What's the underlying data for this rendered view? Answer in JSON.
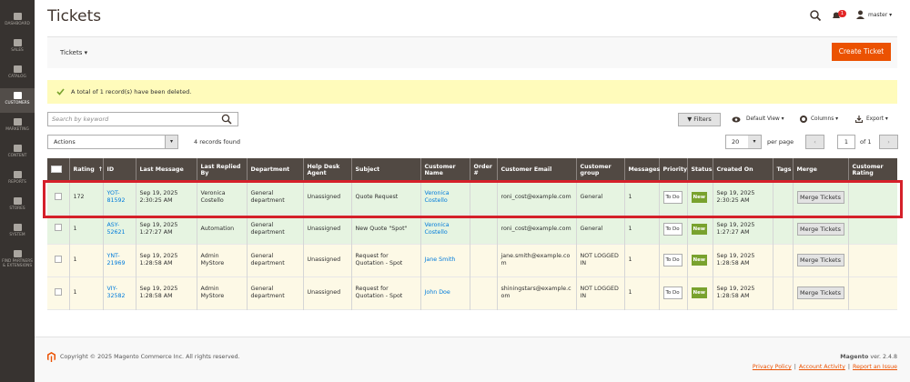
{
  "sidebar": {
    "items": [
      "DASHBOARD",
      "SALES",
      "CATALOG",
      "CUSTOMERS",
      "MARKETING",
      "CONTENT",
      "REPORTS",
      "STORES",
      "SYSTEM",
      "FIND PARTNERS & EXTENSIONS"
    ]
  },
  "header": {
    "title": "Tickets",
    "notifications": "1",
    "user": "master"
  },
  "toolbar": {
    "switcher": "Tickets",
    "button": "Create Ticket"
  },
  "message": "A total of 1 record(s) have been deleted.",
  "grid": {
    "search_placeholder": "Search by keyword",
    "filters": "Filters",
    "view": "Default View",
    "columns": "Columns",
    "export": "Export",
    "actions": "Actions",
    "records": "4 records found",
    "per_page_value": "20",
    "per_page": "per page",
    "page": "1",
    "of_pages": "of 1"
  },
  "table": {
    "columns": [
      "Rating",
      "ID",
      "Last Message",
      "Last Replied By",
      "Department",
      "Help Desk Agent",
      "Subject",
      "Customer Name",
      "Order #",
      "Customer Email",
      "Customer group",
      "Messages",
      "Priority",
      "Status",
      "Created On",
      "Tags",
      "Merge",
      "Customer Rating"
    ],
    "rows": [
      [
        172,
        "YOT-81592",
        "Sep 19, 2025 2:30:25 AM",
        "Veronica Costello",
        "General department",
        "Unassigned",
        "Quote Request",
        "Veronica Costello",
        null,
        "roni_cost@example.com",
        "General",
        1,
        "To Do",
        "New",
        "Sep 19, 2025 2:30:25 AM",
        null,
        "Merge Tickets",
        null
      ],
      [
        1,
        "ASY-52621",
        "Sep 19, 2025 1:27:27 AM",
        "Automation",
        "General department",
        "Unassigned",
        "New Quote \"Spot\"",
        "Veronica Costello",
        null,
        "roni_cost@example.com",
        "General",
        1,
        "To Do",
        "New",
        "Sep 19, 2025 1:27:27 AM",
        null,
        "Merge Tickets",
        null
      ],
      [
        1,
        "YNT-21969",
        "Sep 19, 2025 1:28:58 AM",
        "Admin MyStore",
        "General department",
        "Unassigned",
        "Request for Quotation - Spot",
        "Jane Smith",
        null,
        "jane.smith@example.com",
        "NOT LOGGED IN",
        1,
        "To Do",
        "New",
        "Sep 19, 2025 1:28:58 AM",
        null,
        "Merge Tickets",
        null
      ],
      [
        1,
        "VIY-32582",
        "Sep 19, 2025 1:28:58 AM",
        "Admin MyStore",
        "General department",
        "Unassigned",
        "Request for Quotation - Spot",
        "John Doe",
        null,
        "shiningstars@example.com",
        "NOT LOGGED IN",
        1,
        "To Do",
        "New",
        "Sep 19, 2025 1:28:58 AM",
        null,
        "Merge Tickets",
        null
      ]
    ]
  },
  "footer": {
    "copyright": "Copyright © 2025 Magento Commerce Inc. All rights reserved.",
    "brand": "Magento",
    "version": "ver. 2.4.8",
    "links": [
      "Privacy Policy",
      "Account Activity",
      "Report an Issue"
    ]
  }
}
